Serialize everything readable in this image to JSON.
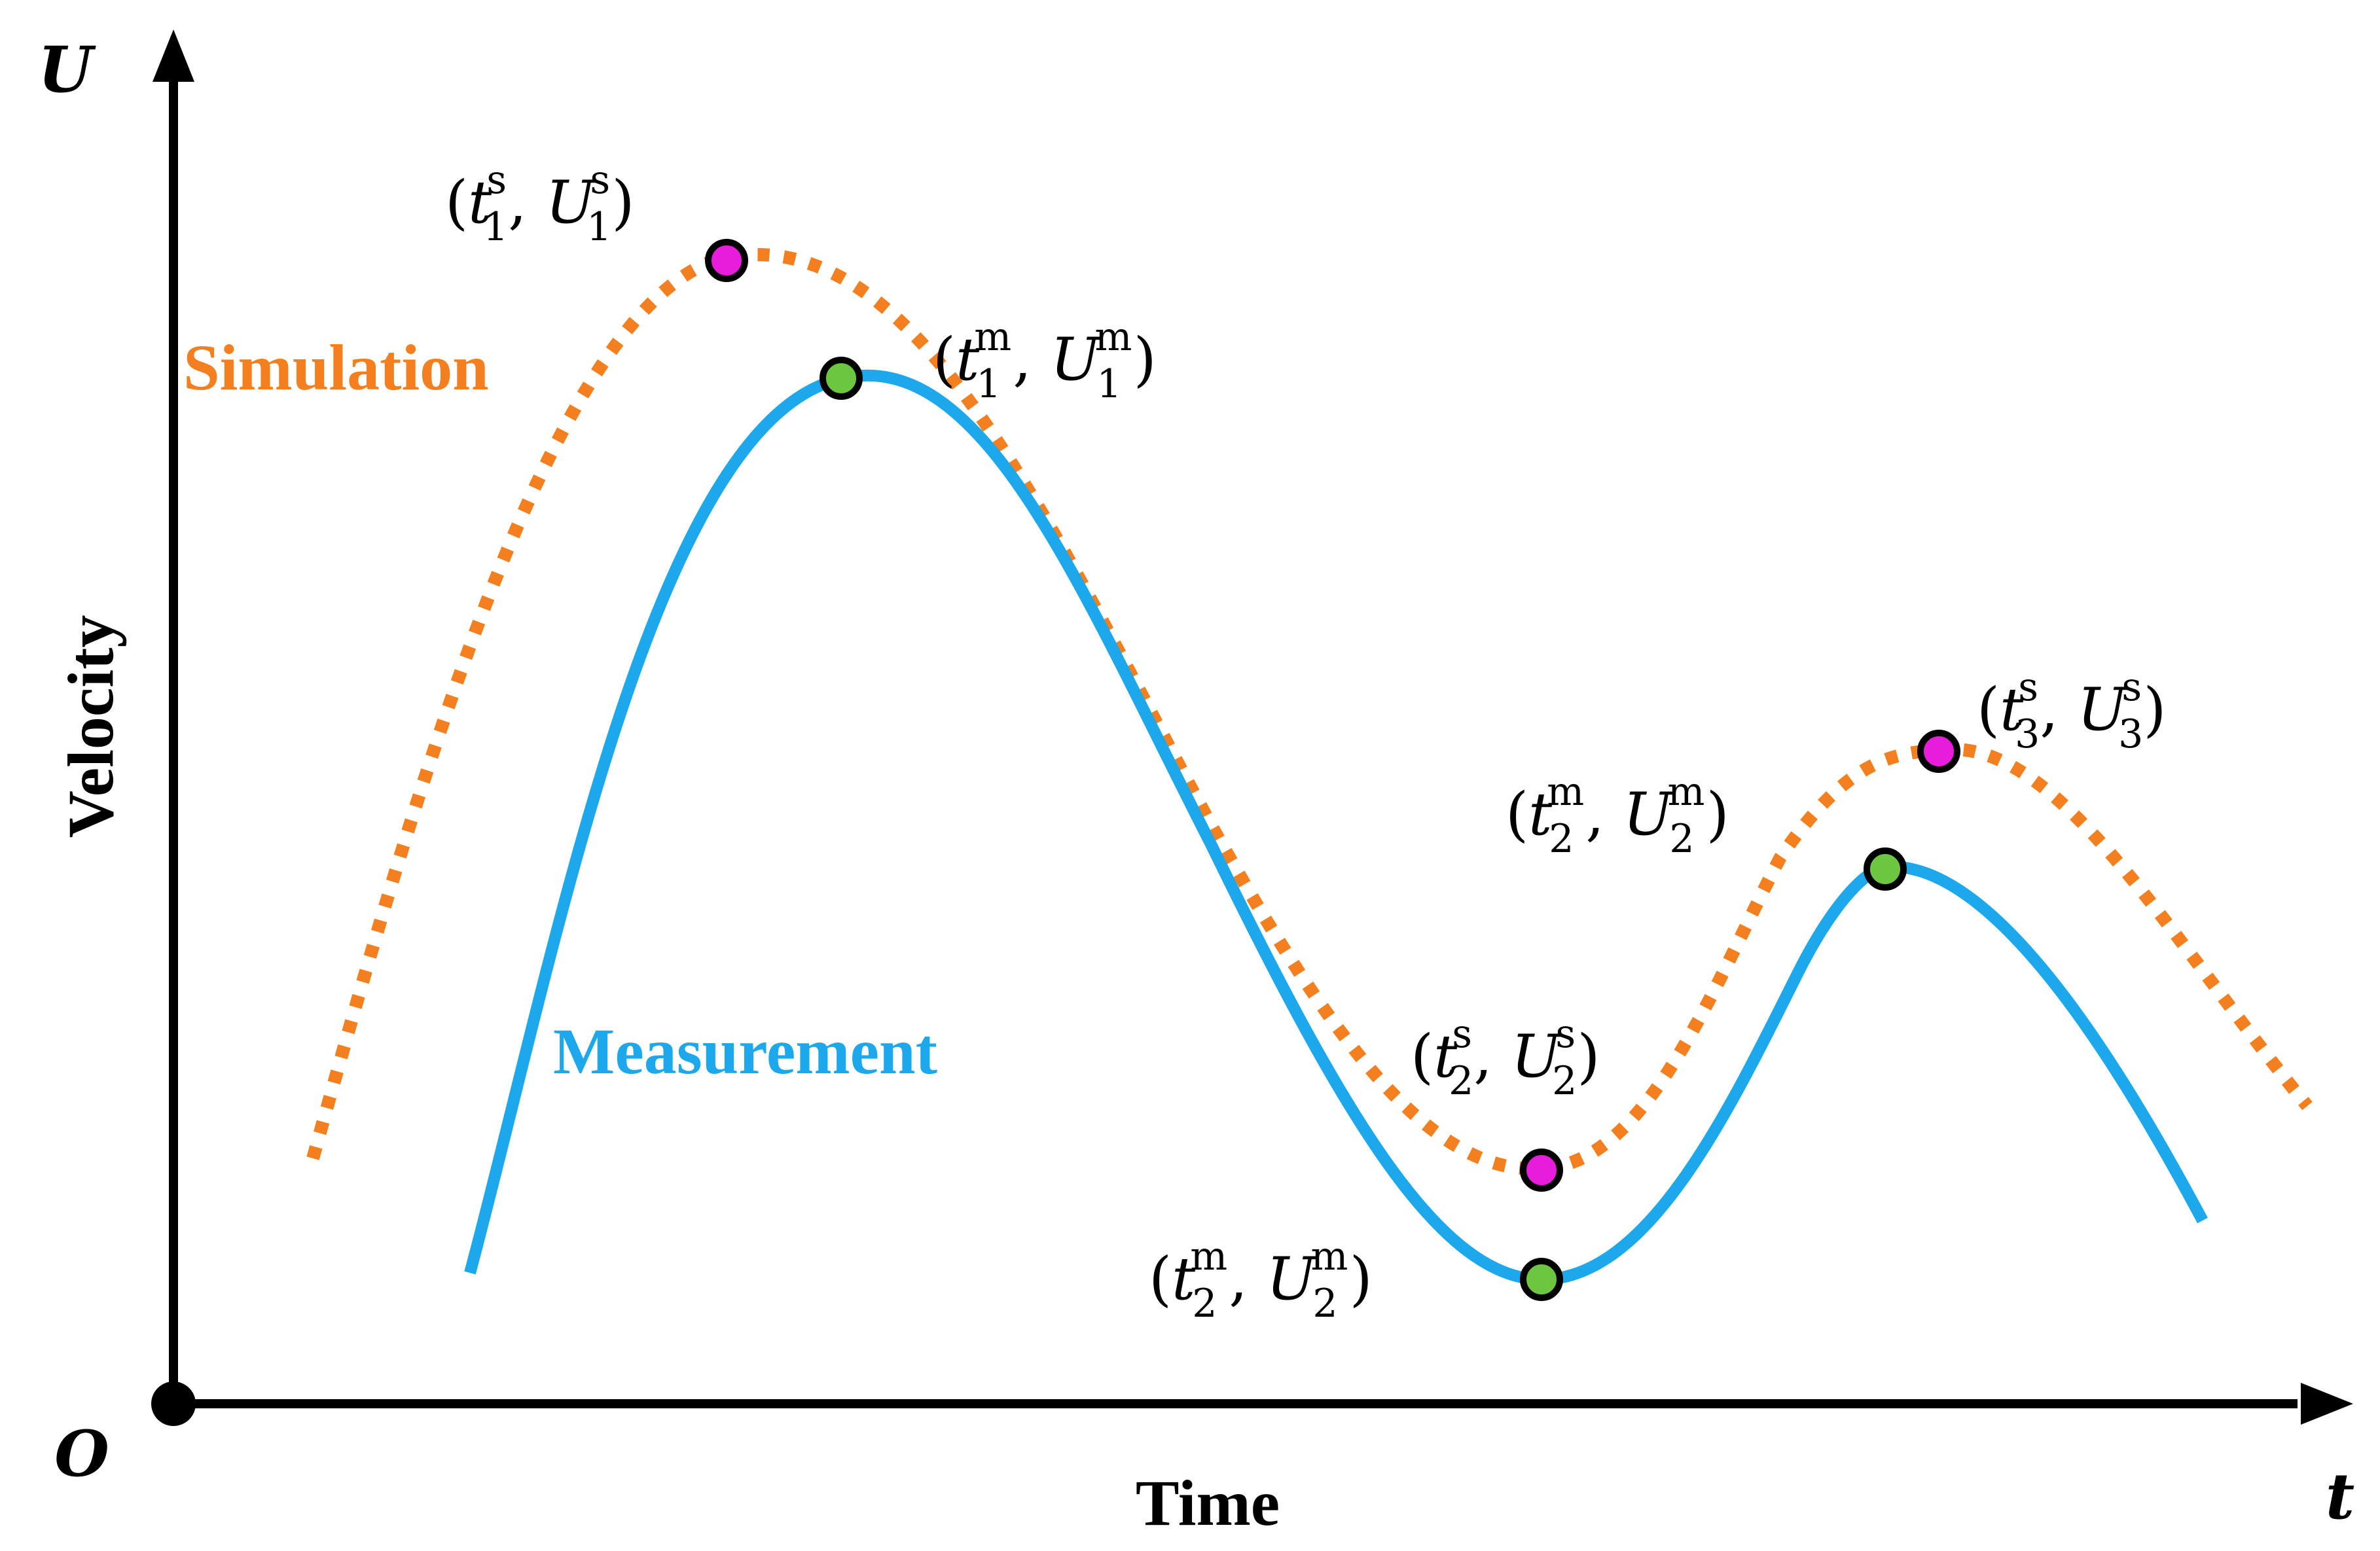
{
  "axes": {
    "y_symbol": "U",
    "x_symbol": "t",
    "origin": "O",
    "y_title": "Velocity",
    "x_title": "Time"
  },
  "series": {
    "simulation": {
      "name": "Simulation",
      "color": "#F47F1E",
      "style": "dotted"
    },
    "measurement": {
      "name": "Measurement",
      "color": "#1CA8EA",
      "style": "solid"
    }
  },
  "marker_colors": {
    "simulation": "#E81CDB",
    "measurement": "#6CC63F",
    "outline": "#000000"
  },
  "points": [
    {
      "id": "s1",
      "t": "t",
      "u": "U",
      "index": "1",
      "kind": "s"
    },
    {
      "id": "m1",
      "t": "t",
      "u": "U",
      "index": "1",
      "kind": "m"
    },
    {
      "id": "s2",
      "t": "t",
      "u": "U",
      "index": "2",
      "kind": "s"
    },
    {
      "id": "m2",
      "t": "t",
      "u": "U",
      "index": "2",
      "kind": "m"
    },
    {
      "id": "s3",
      "t": "t",
      "u": "U",
      "index": "3",
      "kind": "s"
    },
    {
      "id": "m2b",
      "t": "t",
      "u": "U",
      "index": "2",
      "kind": "m"
    }
  ]
}
